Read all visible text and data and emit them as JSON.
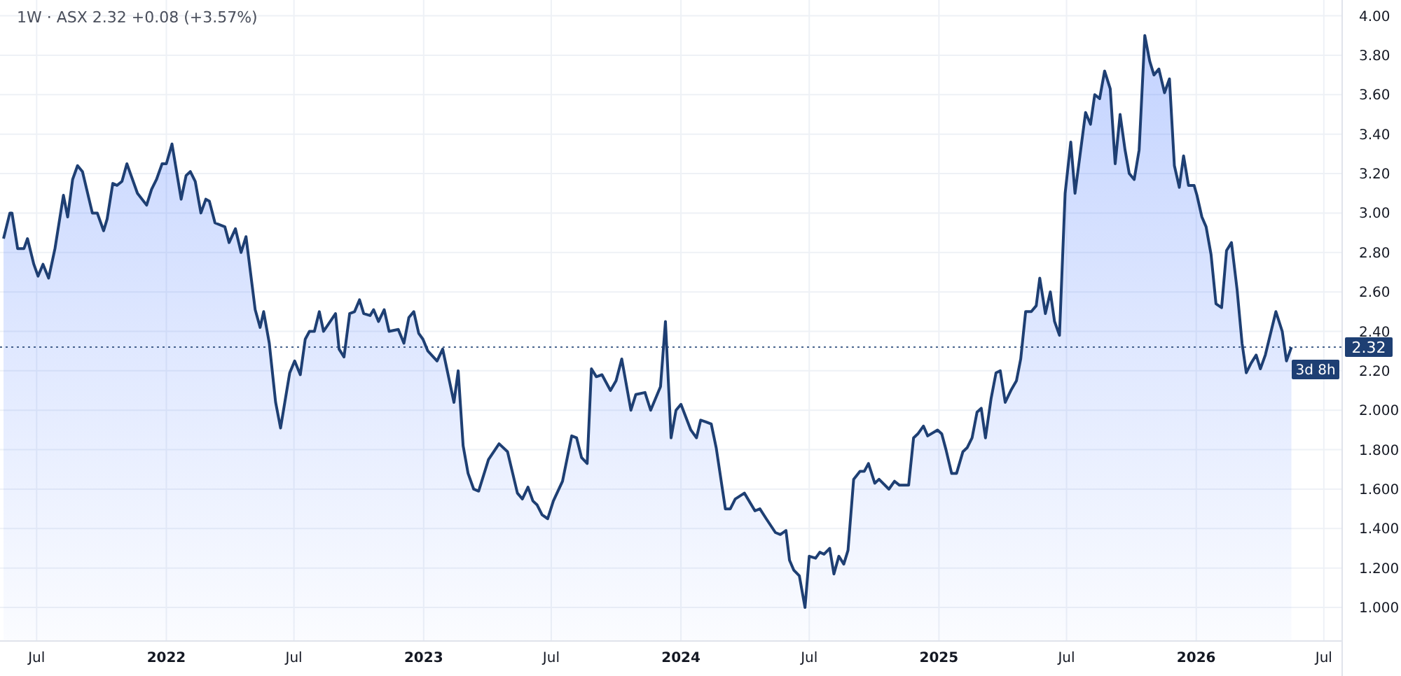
{
  "chart_data": {
    "type": "area",
    "title": "1W · ASX  2.32  +0.08 (+3.57%)",
    "x": [
      "2021-05-15",
      "2021-05-24",
      "2021-05-27",
      "2021-06-04",
      "2021-06-13",
      "2021-06-18",
      "2021-06-27",
      "2021-07-03",
      "2021-07-10",
      "2021-07-18",
      "2021-07-27",
      "2021-08-08",
      "2021-08-14",
      "2021-08-21",
      "2021-08-28",
      "2021-09-04",
      "2021-09-18",
      "2021-09-25",
      "2021-10-04",
      "2021-10-09",
      "2021-10-17",
      "2021-10-23",
      "2021-10-30",
      "2021-11-06",
      "2021-11-21",
      "2021-12-04",
      "2021-12-11",
      "2021-12-18",
      "2021-12-26",
      "2022-01-01",
      "2022-01-09",
      "2022-01-22",
      "2022-01-29",
      "2022-02-04",
      "2022-02-11",
      "2022-02-19",
      "2022-02-26",
      "2022-03-03",
      "2022-03-11",
      "2022-03-25",
      "2022-03-31",
      "2022-04-09",
      "2022-04-17",
      "2022-04-24",
      "2022-05-07",
      "2022-05-14",
      "2022-05-19",
      "2022-05-27",
      "2022-06-05",
      "2022-06-12",
      "2022-06-25",
      "2022-07-02",
      "2022-07-10",
      "2022-07-17",
      "2022-07-23",
      "2022-07-30",
      "2022-08-06",
      "2022-08-12",
      "2022-08-29",
      "2022-09-03",
      "2022-09-10",
      "2022-09-18",
      "2022-09-25",
      "2022-10-02",
      "2022-10-08",
      "2022-10-17",
      "2022-10-22",
      "2022-10-29",
      "2022-11-06",
      "2022-11-13",
      "2022-11-26",
      "2022-12-04",
      "2022-12-11",
      "2022-12-18",
      "2022-12-25",
      "2022-12-31",
      "2023-01-07",
      "2023-01-20",
      "2023-01-28",
      "2023-02-13",
      "2023-02-19",
      "2023-02-26",
      "2023-03-05",
      "2023-03-13",
      "2023-03-20",
      "2023-04-03",
      "2023-04-18",
      "2023-04-30",
      "2023-05-14",
      "2023-05-21",
      "2023-05-29",
      "2023-06-05",
      "2023-06-11",
      "2023-06-18",
      "2023-06-26",
      "2023-07-04",
      "2023-07-17",
      "2023-07-30",
      "2023-08-06",
      "2023-08-13",
      "2023-08-21",
      "2023-08-27",
      "2023-09-03",
      "2023-09-11",
      "2023-09-23",
      "2023-10-01",
      "2023-10-09",
      "2023-10-16",
      "2023-10-22",
      "2023-10-29",
      "2023-11-11",
      "2023-11-19",
      "2023-12-03",
      "2023-12-10",
      "2023-12-18",
      "2023-12-25",
      "2024-01-01",
      "2024-01-15",
      "2024-01-23",
      "2024-01-29",
      "2024-02-06",
      "2024-02-13",
      "2024-02-20",
      "2024-03-04",
      "2024-03-11",
      "2024-03-18",
      "2024-03-31",
      "2024-04-15",
      "2024-04-22",
      "2024-05-01",
      "2024-05-14",
      "2024-05-21",
      "2024-05-29",
      "2024-06-03",
      "2024-06-09",
      "2024-06-17",
      "2024-06-25",
      "2024-07-01",
      "2024-07-10",
      "2024-07-16",
      "2024-07-22",
      "2024-07-30",
      "2024-08-05",
      "2024-08-12",
      "2024-08-19",
      "2024-08-25",
      "2024-09-02",
      "2024-09-11",
      "2024-09-17",
      "2024-09-23",
      "2024-10-02",
      "2024-10-08",
      "2024-10-22",
      "2024-10-30",
      "2024-11-06",
      "2024-11-19",
      "2024-11-26",
      "2024-12-02",
      "2024-12-10",
      "2024-12-16",
      "2024-12-30",
      "2025-01-05",
      "2025-01-11",
      "2025-01-19",
      "2025-01-26",
      "2025-02-04",
      "2025-02-10",
      "2025-02-17",
      "2025-02-24",
      "2025-03-02",
      "2025-03-08",
      "2025-03-16",
      "2025-03-23",
      "2025-03-29",
      "2025-04-05",
      "2025-04-13",
      "2025-04-21",
      "2025-04-27",
      "2025-05-04",
      "2025-05-12",
      "2025-05-19",
      "2025-05-24",
      "2025-06-01",
      "2025-06-08",
      "2025-06-14",
      "2025-06-21",
      "2025-06-29",
      "2025-07-07",
      "2025-07-13",
      "2025-07-20",
      "2025-07-28",
      "2025-08-04",
      "2025-08-10",
      "2025-08-17",
      "2025-08-24",
      "2025-09-01",
      "2025-09-08",
      "2025-09-15",
      "2025-09-22",
      "2025-09-28",
      "2025-10-05",
      "2025-10-12",
      "2025-10-20",
      "2025-10-27",
      "2025-11-02",
      "2025-11-09",
      "2025-11-17",
      "2025-11-24",
      "2025-12-01",
      "2025-12-08",
      "2025-12-14",
      "2025-12-21",
      "2025-12-29",
      "2026-01-02",
      "2026-01-09",
      "2026-01-15",
      "2026-01-22",
      "2026-01-29",
      "2026-02-06",
      "2026-02-13",
      "2026-02-20",
      "2026-02-28",
      "2026-03-07",
      "2026-03-13",
      "2026-03-20",
      "2026-03-27",
      "2026-04-02",
      "2026-04-09",
      "2026-04-24",
      "2026-05-03",
      "2026-05-09",
      "2026-05-16"
    ],
    "series": [
      {
        "color": "#1e3f73",
        "values": [
          2.87,
          3.0,
          3.0,
          2.82,
          2.82,
          2.87,
          2.74,
          2.68,
          2.74,
          2.67,
          2.82,
          3.09,
          2.98,
          3.17,
          3.24,
          3.21,
          3.0,
          3.0,
          2.91,
          2.97,
          3.15,
          3.14,
          3.16,
          3.25,
          3.1,
          3.04,
          3.12,
          3.17,
          3.25,
          3.25,
          3.35,
          3.07,
          3.19,
          3.21,
          3.16,
          3.0,
          3.07,
          3.06,
          2.95,
          2.93,
          2.85,
          2.92,
          2.8,
          2.88,
          2.51,
          2.42,
          2.5,
          2.34,
          2.04,
          1.91,
          2.19,
          2.25,
          2.18,
          2.36,
          2.4,
          2.4,
          2.5,
          2.4,
          2.49,
          2.31,
          2.27,
          2.49,
          2.5,
          2.56,
          2.49,
          2.48,
          2.51,
          2.45,
          2.51,
          2.4,
          2.41,
          2.34,
          2.47,
          2.5,
          2.39,
          2.36,
          2.3,
          2.25,
          2.31,
          2.04,
          2.2,
          1.82,
          1.68,
          1.6,
          1.59,
          1.75,
          1.83,
          1.79,
          1.58,
          1.55,
          1.61,
          1.54,
          1.52,
          1.47,
          1.45,
          1.54,
          1.64,
          1.87,
          1.86,
          1.76,
          1.73,
          2.21,
          2.17,
          2.18,
          2.1,
          2.15,
          2.26,
          2.12,
          2.0,
          2.08,
          2.09,
          2.0,
          2.12,
          2.45,
          1.86,
          2.0,
          2.03,
          1.9,
          1.86,
          1.95,
          1.94,
          1.93,
          1.81,
          1.5,
          1.5,
          1.55,
          1.58,
          1.49,
          1.5,
          1.45,
          1.38,
          1.37,
          1.39,
          1.24,
          1.19,
          1.16,
          1.0,
          1.26,
          1.25,
          1.28,
          1.27,
          1.3,
          1.17,
          1.26,
          1.22,
          1.29,
          1.65,
          1.69,
          1.69,
          1.73,
          1.63,
          1.65,
          1.6,
          1.64,
          1.62,
          1.62,
          1.86,
          1.88,
          1.92,
          1.87,
          1.9,
          1.88,
          1.8,
          1.68,
          1.68,
          1.79,
          1.81,
          1.86,
          1.99,
          2.01,
          1.86,
          2.06,
          2.19,
          2.2,
          2.04,
          2.1,
          2.15,
          2.26,
          2.5,
          2.5,
          2.53,
          2.67,
          2.49,
          2.6,
          2.45,
          2.38,
          3.1,
          3.36,
          3.1,
          3.29,
          3.51,
          3.45,
          3.6,
          3.58,
          3.72,
          3.63,
          3.25,
          3.5,
          3.32,
          3.2,
          3.17,
          3.32,
          3.9,
          3.77,
          3.7,
          3.73,
          3.61,
          3.68,
          3.24,
          3.13,
          3.29,
          3.14,
          3.14,
          3.09,
          2.98,
          2.93,
          2.79,
          2.54,
          2.52,
          2.81,
          2.85,
          2.61,
          2.34,
          2.19,
          2.24,
          2.28,
          2.21,
          2.28,
          2.5,
          2.4,
          2.25,
          2.32
        ]
      }
    ],
    "xlim": [
      "2021-05-10",
      "2026-07-27"
    ],
    "xticks": [
      {
        "value": "2021-07-01",
        "label": "Jul"
      },
      {
        "value": "2022-01-01",
        "label": "2022"
      },
      {
        "value": "2022-07-01",
        "label": "Jul"
      },
      {
        "value": "2023-01-01",
        "label": "2023"
      },
      {
        "value": "2023-07-01",
        "label": "Jul"
      },
      {
        "value": "2024-01-01",
        "label": "2024"
      },
      {
        "value": "2024-07-01",
        "label": "Jul"
      },
      {
        "value": "2025-01-01",
        "label": "2025"
      },
      {
        "value": "2025-07-01",
        "label": "Jul"
      },
      {
        "value": "2026-01-01",
        "label": "2026"
      },
      {
        "value": "2026-07-01",
        "label": "Jul"
      }
    ],
    "ylim": [
      0.83,
      4.08
    ],
    "yticks": [
      {
        "value": 1,
        "label": "1.000"
      },
      {
        "value": 1.2,
        "label": "1.200"
      },
      {
        "value": 1.4,
        "label": "1.400"
      },
      {
        "value": 1.6,
        "label": "1.600"
      },
      {
        "value": 1.8,
        "label": "1.800"
      },
      {
        "value": 2,
        "label": "2.000"
      },
      {
        "value": 2.2,
        "label": "2.20"
      },
      {
        "value": 2.4,
        "label": "2.40"
      },
      {
        "value": 2.6,
        "label": "2.60"
      },
      {
        "value": 2.8,
        "label": "2.80"
      },
      {
        "value": 3,
        "label": "3.00"
      },
      {
        "value": 3.2,
        "label": "3.20"
      },
      {
        "value": 3.4,
        "label": "3.40"
      },
      {
        "value": 3.6,
        "label": "3.60"
      },
      {
        "value": 3.8,
        "label": "3.80"
      },
      {
        "value": 4,
        "label": "4.00"
      }
    ],
    "grid": true,
    "ref_lines": [
      {
        "axis": "y",
        "value": 2.32,
        "label": "2.32",
        "color": "#1e3f73",
        "line_style": "dotted"
      }
    ],
    "annotations": [
      "3d 8h"
    ]
  }
}
